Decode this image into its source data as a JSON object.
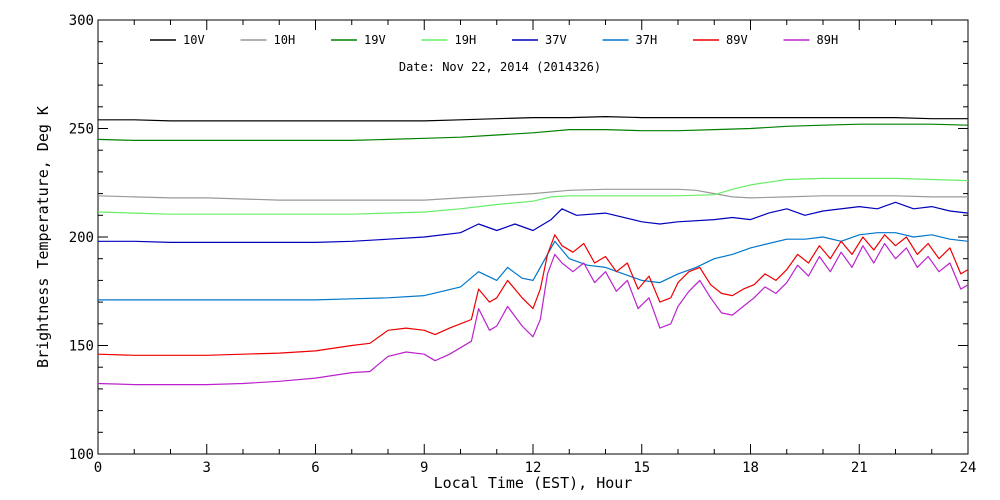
{
  "chart_data": {
    "type": "line",
    "title": "",
    "subtitle": "Date: Nov 22, 2014 (2014326)",
    "xlabel": "Local Time (EST), Hour",
    "ylabel": "Brightness Temperature, Deg K",
    "xlim": [
      0,
      24
    ],
    "ylim": [
      100,
      300
    ],
    "xticks": [
      0,
      3,
      6,
      9,
      12,
      15,
      18,
      21,
      24
    ],
    "yticks": [
      100,
      150,
      200,
      250,
      300
    ],
    "grid": false,
    "legend_position": "top",
    "series": [
      {
        "name": "10V",
        "color": "#000000",
        "points": [
          [
            0,
            254
          ],
          [
            1,
            254
          ],
          [
            2,
            253.5
          ],
          [
            3,
            253.5
          ],
          [
            4,
            253.5
          ],
          [
            5,
            253.5
          ],
          [
            6,
            253.5
          ],
          [
            7,
            253.5
          ],
          [
            8,
            253.5
          ],
          [
            9,
            253.5
          ],
          [
            10,
            254
          ],
          [
            11,
            254.5
          ],
          [
            12,
            255
          ],
          [
            13,
            255
          ],
          [
            14,
            255.5
          ],
          [
            15,
            255
          ],
          [
            16,
            255
          ],
          [
            17,
            255
          ],
          [
            18,
            255
          ],
          [
            19,
            255
          ],
          [
            20,
            255
          ],
          [
            21,
            255
          ],
          [
            22,
            255
          ],
          [
            23,
            254.5
          ],
          [
            24,
            254.5
          ]
        ]
      },
      {
        "name": "10H",
        "color": "#999999",
        "points": [
          [
            0,
            219
          ],
          [
            1,
            218.5
          ],
          [
            2,
            218
          ],
          [
            3,
            218
          ],
          [
            4,
            217.5
          ],
          [
            5,
            217
          ],
          [
            6,
            217
          ],
          [
            7,
            217
          ],
          [
            8,
            217
          ],
          [
            9,
            217
          ],
          [
            10,
            218
          ],
          [
            11,
            219
          ],
          [
            12,
            220
          ],
          [
            13,
            221.5
          ],
          [
            14,
            222
          ],
          [
            15,
            222
          ],
          [
            16,
            222
          ],
          [
            16.5,
            221.5
          ],
          [
            17,
            220
          ],
          [
            17.5,
            218.5
          ],
          [
            18,
            218
          ],
          [
            19,
            218.5
          ],
          [
            20,
            219
          ],
          [
            21,
            219
          ],
          [
            22,
            219
          ],
          [
            23,
            218.5
          ],
          [
            24,
            218.5
          ]
        ]
      },
      {
        "name": "19V",
        "color": "#008000",
        "points": [
          [
            0,
            245
          ],
          [
            1,
            244.5
          ],
          [
            2,
            244.5
          ],
          [
            3,
            244.5
          ],
          [
            4,
            244.5
          ],
          [
            5,
            244.5
          ],
          [
            6,
            244.5
          ],
          [
            7,
            244.5
          ],
          [
            8,
            245
          ],
          [
            9,
            245.5
          ],
          [
            10,
            246
          ],
          [
            11,
            247
          ],
          [
            12,
            248
          ],
          [
            13,
            249.5
          ],
          [
            14,
            249.5
          ],
          [
            15,
            249
          ],
          [
            16,
            249
          ],
          [
            17,
            249.5
          ],
          [
            18,
            250
          ],
          [
            19,
            251
          ],
          [
            20,
            251.5
          ],
          [
            21,
            252
          ],
          [
            22,
            252
          ],
          [
            23,
            252
          ],
          [
            24,
            251.5
          ]
        ]
      },
      {
        "name": "19H",
        "color": "#66ee66",
        "points": [
          [
            0,
            211.5
          ],
          [
            1,
            211
          ],
          [
            2,
            210.5
          ],
          [
            3,
            210.5
          ],
          [
            4,
            210.5
          ],
          [
            5,
            210.5
          ],
          [
            6,
            210.5
          ],
          [
            7,
            210.5
          ],
          [
            8,
            211
          ],
          [
            9,
            211.5
          ],
          [
            10,
            213
          ],
          [
            11,
            215
          ],
          [
            12,
            216.5
          ],
          [
            12.5,
            218.5
          ],
          [
            13,
            219
          ],
          [
            14,
            219
          ],
          [
            15,
            219
          ],
          [
            16,
            219
          ],
          [
            17,
            219.5
          ],
          [
            17.5,
            222
          ],
          [
            18,
            224
          ],
          [
            19,
            226.5
          ],
          [
            20,
            227
          ],
          [
            21,
            227
          ],
          [
            22,
            227
          ],
          [
            23,
            226.5
          ],
          [
            24,
            226
          ]
        ]
      },
      {
        "name": "37V",
        "color": "#0000bb",
        "points": [
          [
            0,
            198
          ],
          [
            1,
            198
          ],
          [
            2,
            197.5
          ],
          [
            3,
            197.5
          ],
          [
            4,
            197.5
          ],
          [
            5,
            197.5
          ],
          [
            6,
            197.5
          ],
          [
            7,
            198
          ],
          [
            8,
            199
          ],
          [
            9,
            200
          ],
          [
            10,
            202
          ],
          [
            10.5,
            206
          ],
          [
            11,
            203
          ],
          [
            11.5,
            206
          ],
          [
            12,
            203
          ],
          [
            12.5,
            208
          ],
          [
            12.8,
            213
          ],
          [
            13.2,
            210
          ],
          [
            14,
            211
          ],
          [
            15,
            207
          ],
          [
            15.5,
            206
          ],
          [
            16,
            207
          ],
          [
            17,
            208
          ],
          [
            17.5,
            209
          ],
          [
            18,
            208
          ],
          [
            18.5,
            211
          ],
          [
            19,
            213
          ],
          [
            19.5,
            210
          ],
          [
            20,
            212
          ],
          [
            21,
            214
          ],
          [
            21.5,
            213
          ],
          [
            22,
            216
          ],
          [
            22.5,
            213
          ],
          [
            23,
            214
          ],
          [
            23.5,
            212
          ],
          [
            24,
            211
          ]
        ]
      },
      {
        "name": "37H",
        "color": "#0077cc",
        "points": [
          [
            0,
            171
          ],
          [
            1,
            171
          ],
          [
            2,
            171
          ],
          [
            3,
            171
          ],
          [
            4,
            171
          ],
          [
            5,
            171
          ],
          [
            6,
            171
          ],
          [
            7,
            171.5
          ],
          [
            8,
            172
          ],
          [
            9,
            173
          ],
          [
            9.5,
            175
          ],
          [
            10,
            177
          ],
          [
            10.5,
            184
          ],
          [
            11,
            180
          ],
          [
            11.3,
            186
          ],
          [
            11.7,
            181
          ],
          [
            12,
            180
          ],
          [
            12.4,
            192
          ],
          [
            12.6,
            198
          ],
          [
            13,
            190
          ],
          [
            13.5,
            187
          ],
          [
            14,
            186
          ],
          [
            14.5,
            183
          ],
          [
            15,
            180
          ],
          [
            15.5,
            179
          ],
          [
            16,
            183
          ],
          [
            16.5,
            186
          ],
          [
            17,
            190
          ],
          [
            17.5,
            192
          ],
          [
            18,
            195
          ],
          [
            18.5,
            197
          ],
          [
            19,
            199
          ],
          [
            19.5,
            199
          ],
          [
            20,
            200
          ],
          [
            20.5,
            198
          ],
          [
            21,
            201
          ],
          [
            21.5,
            202
          ],
          [
            22,
            202
          ],
          [
            22.5,
            200
          ],
          [
            23,
            201
          ],
          [
            23.5,
            199
          ],
          [
            24,
            198
          ]
        ]
      },
      {
        "name": "89V",
        "color": "#ee0000",
        "points": [
          [
            0,
            146
          ],
          [
            1,
            145.5
          ],
          [
            2,
            145.5
          ],
          [
            3,
            145.5
          ],
          [
            4,
            146
          ],
          [
            5,
            146.5
          ],
          [
            6,
            147.5
          ],
          [
            7,
            150
          ],
          [
            7.5,
            151
          ],
          [
            8,
            157
          ],
          [
            8.5,
            158
          ],
          [
            9,
            157
          ],
          [
            9.3,
            155
          ],
          [
            9.7,
            158
          ],
          [
            10,
            160
          ],
          [
            10.3,
            162
          ],
          [
            10.5,
            176
          ],
          [
            10.8,
            170
          ],
          [
            11,
            172
          ],
          [
            11.3,
            180
          ],
          [
            11.7,
            172
          ],
          [
            12,
            167
          ],
          [
            12.2,
            176
          ],
          [
            12.4,
            192
          ],
          [
            12.6,
            201
          ],
          [
            12.8,
            196
          ],
          [
            13.1,
            193
          ],
          [
            13.4,
            197
          ],
          [
            13.7,
            188
          ],
          [
            14,
            191
          ],
          [
            14.3,
            184
          ],
          [
            14.6,
            188
          ],
          [
            14.9,
            176
          ],
          [
            15.2,
            182
          ],
          [
            15.5,
            170
          ],
          [
            15.8,
            172
          ],
          [
            16,
            179
          ],
          [
            16.3,
            184
          ],
          [
            16.6,
            186
          ],
          [
            16.9,
            178
          ],
          [
            17.2,
            174
          ],
          [
            17.5,
            173
          ],
          [
            17.8,
            176
          ],
          [
            18.1,
            178
          ],
          [
            18.4,
            183
          ],
          [
            18.7,
            180
          ],
          [
            19,
            185
          ],
          [
            19.3,
            192
          ],
          [
            19.6,
            188
          ],
          [
            19.9,
            196
          ],
          [
            20.2,
            190
          ],
          [
            20.5,
            198
          ],
          [
            20.8,
            192
          ],
          [
            21.1,
            200
          ],
          [
            21.4,
            194
          ],
          [
            21.7,
            201
          ],
          [
            22,
            196
          ],
          [
            22.3,
            200
          ],
          [
            22.6,
            192
          ],
          [
            22.9,
            197
          ],
          [
            23.2,
            190
          ],
          [
            23.5,
            195
          ],
          [
            23.8,
            183
          ],
          [
            24,
            185
          ]
        ]
      },
      {
        "name": "89H",
        "color": "#bb22cc",
        "points": [
          [
            0,
            132.5
          ],
          [
            1,
            132
          ],
          [
            2,
            132
          ],
          [
            3,
            132
          ],
          [
            4,
            132.5
          ],
          [
            5,
            133.5
          ],
          [
            6,
            135
          ],
          [
            7,
            137.5
          ],
          [
            7.5,
            138
          ],
          [
            8,
            145
          ],
          [
            8.5,
            147
          ],
          [
            9,
            146
          ],
          [
            9.3,
            143
          ],
          [
            9.7,
            146
          ],
          [
            10,
            149
          ],
          [
            10.3,
            152
          ],
          [
            10.5,
            167
          ],
          [
            10.8,
            157
          ],
          [
            11,
            159
          ],
          [
            11.3,
            168
          ],
          [
            11.7,
            159
          ],
          [
            12,
            154
          ],
          [
            12.2,
            162
          ],
          [
            12.4,
            183
          ],
          [
            12.6,
            192
          ],
          [
            12.8,
            188
          ],
          [
            13.1,
            184
          ],
          [
            13.4,
            188
          ],
          [
            13.7,
            179
          ],
          [
            14,
            184
          ],
          [
            14.3,
            175
          ],
          [
            14.6,
            180
          ],
          [
            14.9,
            167
          ],
          [
            15.2,
            172
          ],
          [
            15.5,
            158
          ],
          [
            15.8,
            160
          ],
          [
            16,
            168
          ],
          [
            16.3,
            175
          ],
          [
            16.6,
            180
          ],
          [
            16.9,
            172
          ],
          [
            17.2,
            165
          ],
          [
            17.5,
            164
          ],
          [
            17.8,
            168
          ],
          [
            18.1,
            172
          ],
          [
            18.4,
            177
          ],
          [
            18.7,
            174
          ],
          [
            19,
            179
          ],
          [
            19.3,
            187
          ],
          [
            19.6,
            182
          ],
          [
            19.9,
            191
          ],
          [
            20.2,
            184
          ],
          [
            20.5,
            193
          ],
          [
            20.8,
            186
          ],
          [
            21.1,
            196
          ],
          [
            21.4,
            188
          ],
          [
            21.7,
            197
          ],
          [
            22,
            190
          ],
          [
            22.3,
            195
          ],
          [
            22.6,
            186
          ],
          [
            22.9,
            191
          ],
          [
            23.2,
            184
          ],
          [
            23.5,
            188
          ],
          [
            23.8,
            176
          ],
          [
            24,
            178
          ]
        ]
      }
    ]
  }
}
